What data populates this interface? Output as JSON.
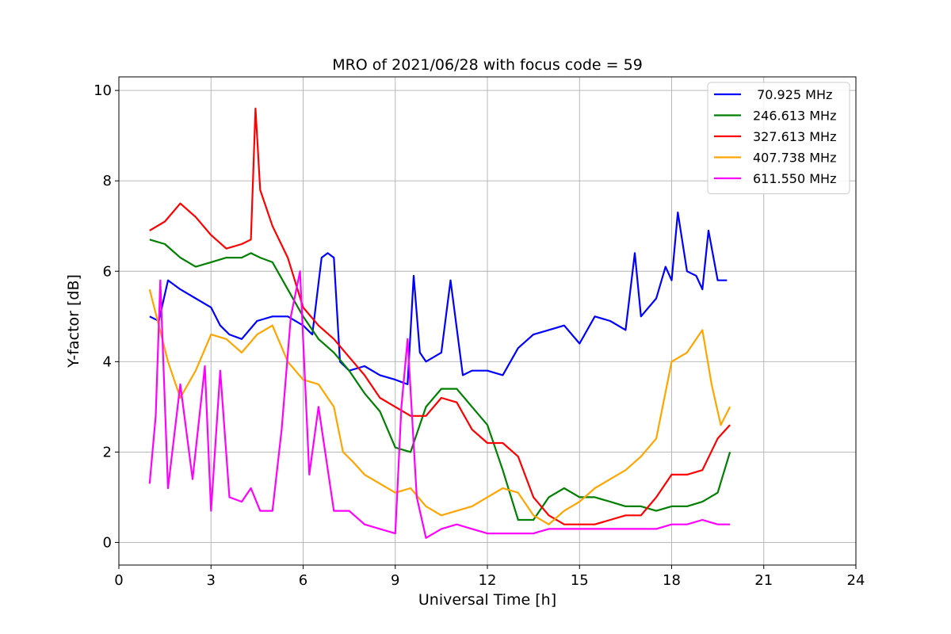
{
  "chart_data": {
    "type": "line",
    "title": "MRO of 2021/06/28 with focus code = 59",
    "xlabel": "Universal Time [h]",
    "ylabel": "Y-factor [dB]",
    "xlim": [
      0,
      24
    ],
    "ylim": [
      -0.5,
      10.3
    ],
    "xticks": [
      0,
      3,
      6,
      9,
      12,
      15,
      18,
      21,
      24
    ],
    "yticks": [
      0,
      2,
      4,
      6,
      8,
      10
    ],
    "grid": true,
    "legend_position": "top-right",
    "series": [
      {
        "name": " 70.925 MHz",
        "color": "#0000ff",
        "x": [
          1.0,
          1.3,
          1.6,
          2.0,
          2.5,
          3.0,
          3.3,
          3.6,
          4.0,
          4.5,
          5.0,
          5.5,
          6.0,
          6.3,
          6.6,
          6.8,
          7.0,
          7.2,
          7.5,
          8.0,
          8.5,
          9.0,
          9.4,
          9.6,
          9.8,
          10.0,
          10.5,
          10.8,
          11.2,
          11.5,
          12.0,
          12.5,
          13.0,
          13.5,
          14.0,
          14.5,
          15.0,
          15.5,
          16.0,
          16.5,
          16.8,
          17.0,
          17.5,
          17.8,
          18.0,
          18.2,
          18.5,
          18.8,
          19.0,
          19.2,
          19.5,
          19.8
        ],
        "y": [
          5.0,
          4.9,
          5.8,
          5.6,
          5.4,
          5.2,
          4.8,
          4.6,
          4.5,
          4.9,
          5.0,
          5.0,
          4.8,
          4.6,
          6.3,
          6.4,
          6.3,
          4.0,
          3.8,
          3.9,
          3.7,
          3.6,
          3.5,
          5.9,
          4.2,
          4.0,
          4.2,
          5.8,
          3.7,
          3.8,
          3.8,
          3.7,
          4.3,
          4.6,
          4.7,
          4.8,
          4.4,
          5.0,
          4.9,
          4.7,
          6.4,
          5.0,
          5.4,
          6.1,
          5.8,
          7.3,
          6.0,
          5.9,
          5.6,
          6.9,
          5.8,
          5.8
        ]
      },
      {
        "name": "246.613 MHz",
        "color": "#008000",
        "x": [
          1.0,
          1.5,
          2.0,
          2.5,
          3.0,
          3.5,
          4.0,
          4.3,
          4.6,
          5.0,
          5.5,
          6.0,
          6.5,
          7.0,
          7.5,
          8.0,
          8.5,
          9.0,
          9.5,
          10.0,
          10.5,
          11.0,
          11.5,
          12.0,
          12.5,
          13.0,
          13.5,
          14.0,
          14.5,
          15.0,
          15.5,
          16.0,
          16.5,
          17.0,
          17.5,
          18.0,
          18.5,
          19.0,
          19.5,
          19.9
        ],
        "y": [
          6.7,
          6.6,
          6.3,
          6.1,
          6.2,
          6.3,
          6.3,
          6.4,
          6.3,
          6.2,
          5.6,
          5.0,
          4.5,
          4.2,
          3.8,
          3.3,
          2.9,
          2.1,
          2.0,
          3.0,
          3.4,
          3.4,
          3.0,
          2.6,
          1.6,
          0.5,
          0.5,
          1.0,
          1.2,
          1.0,
          1.0,
          0.9,
          0.8,
          0.8,
          0.7,
          0.8,
          0.8,
          0.9,
          1.1,
          2.0
        ]
      },
      {
        "name": "327.613 MHz",
        "color": "#ff0000",
        "x": [
          1.0,
          1.5,
          2.0,
          2.5,
          3.0,
          3.5,
          4.0,
          4.3,
          4.45,
          4.6,
          5.0,
          5.5,
          6.0,
          6.5,
          7.0,
          7.5,
          8.0,
          8.5,
          9.0,
          9.5,
          10.0,
          10.5,
          11.0,
          11.5,
          12.0,
          12.5,
          13.0,
          13.5,
          14.0,
          14.5,
          15.0,
          15.5,
          16.0,
          16.5,
          17.0,
          17.5,
          18.0,
          18.5,
          19.0,
          19.5,
          19.9
        ],
        "y": [
          6.9,
          7.1,
          7.5,
          7.2,
          6.8,
          6.5,
          6.6,
          6.7,
          9.6,
          7.8,
          7.0,
          6.3,
          5.2,
          4.8,
          4.5,
          4.1,
          3.7,
          3.2,
          3.0,
          2.8,
          2.8,
          3.2,
          3.1,
          2.5,
          2.2,
          2.2,
          1.9,
          1.0,
          0.6,
          0.4,
          0.4,
          0.4,
          0.5,
          0.6,
          0.6,
          1.0,
          1.5,
          1.5,
          1.6,
          2.3,
          2.6
        ]
      },
      {
        "name": "407.738 MHz",
        "color": "#ffa500",
        "x": [
          1.0,
          1.3,
          1.6,
          2.0,
          2.5,
          3.0,
          3.5,
          4.0,
          4.5,
          5.0,
          5.5,
          6.0,
          6.5,
          7.0,
          7.3,
          7.6,
          8.0,
          8.5,
          9.0,
          9.5,
          10.0,
          10.5,
          11.0,
          11.5,
          12.0,
          12.5,
          13.0,
          13.5,
          14.0,
          14.5,
          15.0,
          15.5,
          16.0,
          16.5,
          17.0,
          17.5,
          18.0,
          18.5,
          19.0,
          19.3,
          19.6,
          19.9
        ],
        "y": [
          5.6,
          4.8,
          4.0,
          3.2,
          3.8,
          4.6,
          4.5,
          4.2,
          4.6,
          4.8,
          4.0,
          3.6,
          3.5,
          3.0,
          2.0,
          1.8,
          1.5,
          1.3,
          1.1,
          1.2,
          0.8,
          0.6,
          0.7,
          0.8,
          1.0,
          1.2,
          1.1,
          0.6,
          0.4,
          0.7,
          0.9,
          1.2,
          1.4,
          1.6,
          1.9,
          2.3,
          4.0,
          4.2,
          4.7,
          3.5,
          2.6,
          3.0
        ]
      },
      {
        "name": "611.550 MHz",
        "color": "#ff00ff",
        "x": [
          1.0,
          1.2,
          1.35,
          1.6,
          2.0,
          2.4,
          2.8,
          3.0,
          3.3,
          3.6,
          4.0,
          4.3,
          4.6,
          5.0,
          5.3,
          5.6,
          5.9,
          6.2,
          6.5,
          7.0,
          7.5,
          8.0,
          8.5,
          9.0,
          9.2,
          9.4,
          9.7,
          10.0,
          10.5,
          11.0,
          11.5,
          12.0,
          12.5,
          13.0,
          13.5,
          14.0,
          14.5,
          15.0,
          15.5,
          16.0,
          16.5,
          17.0,
          17.5,
          18.0,
          18.5,
          19.0,
          19.5,
          19.9
        ],
        "y": [
          1.3,
          2.8,
          5.8,
          1.2,
          3.5,
          1.4,
          3.9,
          0.7,
          3.8,
          1.0,
          0.9,
          1.2,
          0.7,
          0.7,
          2.5,
          5.0,
          6.0,
          1.5,
          3.0,
          0.7,
          0.7,
          0.4,
          0.3,
          0.2,
          3.0,
          4.5,
          1.0,
          0.1,
          0.3,
          0.4,
          0.3,
          0.2,
          0.2,
          0.2,
          0.2,
          0.3,
          0.3,
          0.3,
          0.3,
          0.3,
          0.3,
          0.3,
          0.3,
          0.4,
          0.4,
          0.5,
          0.4,
          0.4
        ]
      }
    ]
  }
}
